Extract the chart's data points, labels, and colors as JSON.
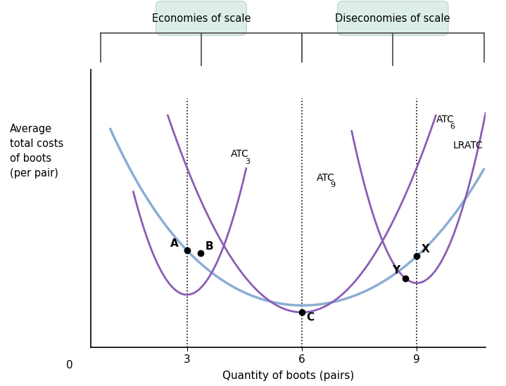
{
  "title_ylabel": "Average\ntotal costs\nof boots\n(per pair)",
  "xlabel": "Quantity of boots (pairs)",
  "xlim": [
    0.5,
    10.8
  ],
  "ylim": [
    0,
    9.5
  ],
  "xticks": [
    3,
    6,
    9
  ],
  "dotted_vlines": [
    3,
    6,
    9
  ],
  "lratc_color": "#8BADD4",
  "atc_color": "#8B5CB5",
  "point_color": "#000000",
  "economies_label": "Economies of scale",
  "diseconomies_label": "Diseconomies of scale",
  "box_facecolor": "#ddeee8",
  "box_edgecolor": "#b8d4cc",
  "label_ATC3": "ATC",
  "label_ATC3_sub": "3",
  "label_ATC9": "ATC",
  "label_ATC9_sub": "9",
  "label_ATC6": "ATC",
  "label_ATC6_sub": "6",
  "label_LRATC": "LRATC",
  "brace_color": "#555555"
}
